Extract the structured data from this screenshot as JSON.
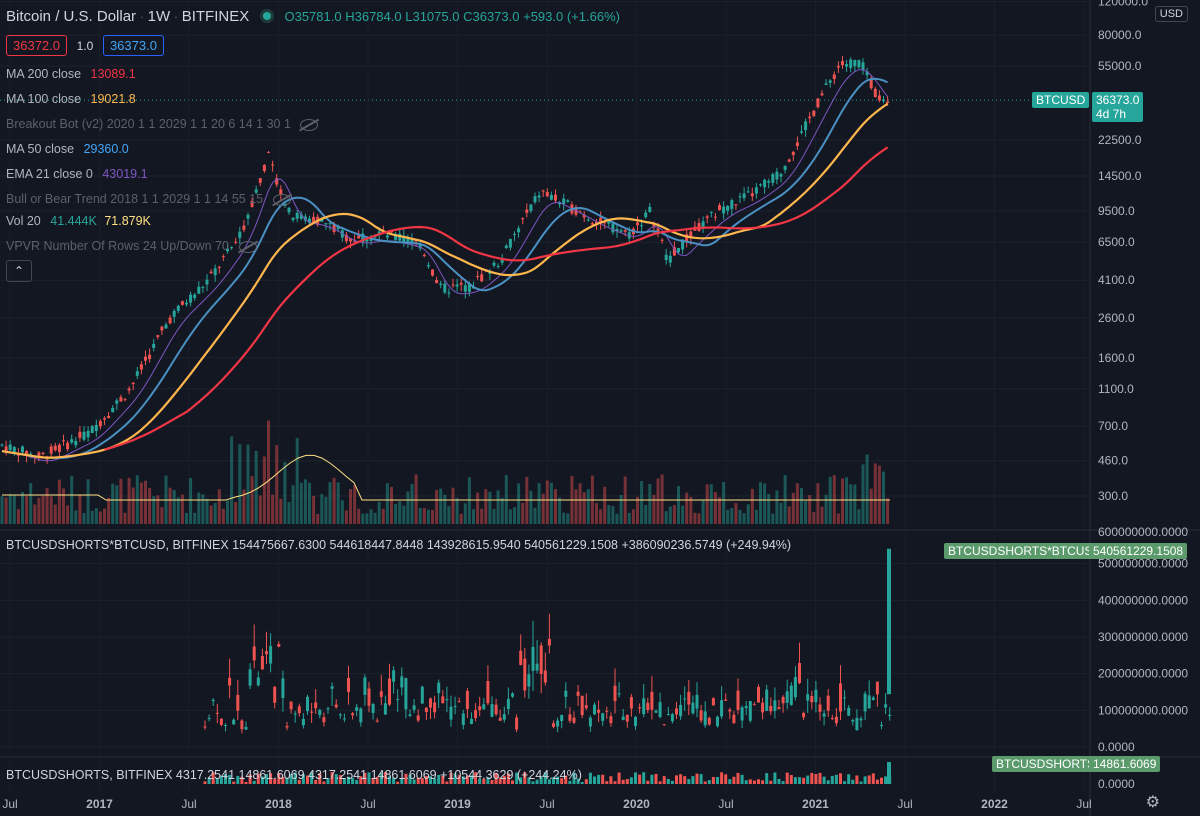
{
  "header": {
    "symbol": "Bitcoin / U.S. Dollar",
    "interval": "1W",
    "exchange": "BITFINEX",
    "o_label": "O",
    "o": "35781.0",
    "h_label": "H",
    "h": "36784.0",
    "l_label": "L",
    "l": "31075.0",
    "c_label": "C",
    "c": "36373.0",
    "change": "+593.0 (+1.66%)",
    "bid": "36372.0",
    "spread": "1.0",
    "ask": "36373.0"
  },
  "indicators": {
    "ma200_label": "MA 200 close",
    "ma200_value": "13089.1",
    "ma100_label": "MA 100 close",
    "ma100_value": "19021.8",
    "breakout_label": "Breakout Bot (v2) 2020 1 1 2029 1 1 20 6 14 1 30 1",
    "ma50_label": "MA 50 close",
    "ma50_value": "29360.0",
    "ema21_label": "EMA 21 close 0",
    "ema21_value": "43019.1",
    "bullbear_label": "Bull or Bear Trend 2018 1 1 2029 1 1 14 55 15",
    "vol_label": "Vol 20",
    "vol_value1": "41.444K",
    "vol_value2": "71.879K",
    "vpvr_label": "VPVR Number Of Rows 24 Up/Down 70"
  },
  "pane2": {
    "title": "BTCUSDSHORTS*BTCUSD, BITFINEX  154475667.6300  544618447.8448  143928615.9540  540561229.1508  +386090236.5749 (+249.94%)",
    "tag": "BTCUSDSHORTS*BTCUSD",
    "tag_value": "540561229.1508"
  },
  "pane3": {
    "title": "BTCUSDSHORTS, BITFINEX  4317.2541  14861.6069  4317.2541  14861.6069  +10544.3629 (+244.24%)",
    "tag": "BTCUSDSHORTS",
    "tag_value": "14861.6069"
  },
  "price_tag": {
    "symbol": "BTCUSD",
    "price": "36373.0",
    "countdown": "4d 7h"
  },
  "currency": "USD",
  "colors": {
    "up": "#26a69a",
    "down": "#ef5350",
    "ma200": "#f23645",
    "ma100": "#ffb74d",
    "ma50": "#4a90c2",
    "ema21": "#7e57c2",
    "vol_ma": "#ffe082"
  },
  "chart_data": {
    "type": "candlestick",
    "price_axis_ticks": [
      "120000.0",
      "80000.0",
      "55000.0",
      "36373.0",
      "22500.0",
      "14500.0",
      "9500.0",
      "6500.0",
      "4100.0",
      "2600.0",
      "1600.0",
      "1100.0",
      "700.0",
      "460.0",
      "300.0"
    ],
    "pane2_axis_ticks": [
      "600000000.0000",
      "500000000.0000",
      "400000000.0000",
      "300000000.0000",
      "200000000.0000",
      "100000000.0000",
      "0.0000"
    ],
    "pane3_axis_ticks": [
      "0.0000"
    ],
    "time_axis_ticks": [
      "Jul",
      "2017",
      "Jul",
      "2018",
      "Jul",
      "2019",
      "Jul",
      "2020",
      "Jul",
      "2021",
      "Jul",
      "2022",
      "Jul"
    ],
    "log_scale": true
  }
}
